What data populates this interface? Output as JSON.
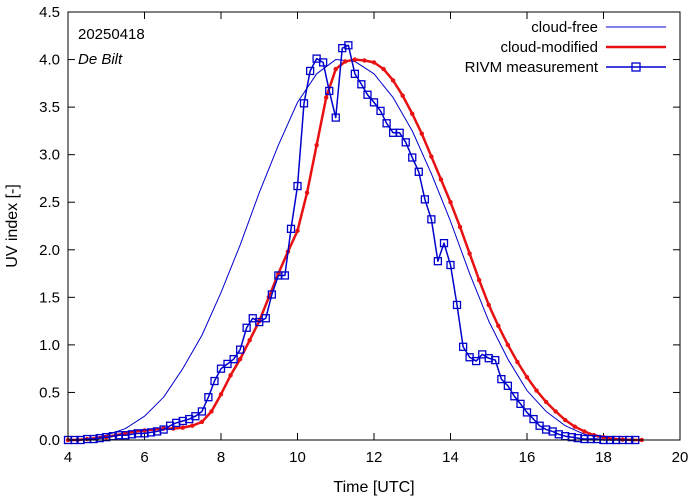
{
  "chart_data": {
    "type": "line",
    "title": "",
    "date_label": "20250418",
    "location_label": "De Bilt",
    "xlabel": "Time  [UTC]",
    "ylabel": "UV index  [-]",
    "xlim": [
      4,
      20
    ],
    "ylim": [
      0,
      4.5
    ],
    "xticks": [
      4,
      6,
      8,
      10,
      12,
      14,
      16,
      18,
      20
    ],
    "yticks": [
      0.0,
      0.5,
      1.0,
      1.5,
      2.0,
      2.5,
      3.0,
      3.5,
      4.0,
      4.5
    ],
    "legend_position": "top-right",
    "series": [
      {
        "name": "cloud-free",
        "color": "#0000cc",
        "marker": "none",
        "x": [
          4.0,
          4.5,
          5.0,
          5.5,
          6.0,
          6.5,
          7.0,
          7.5,
          8.0,
          8.5,
          9.0,
          9.5,
          10.0,
          10.5,
          11.0,
          11.5,
          12.0,
          12.5,
          13.0,
          13.5,
          14.0,
          14.5,
          15.0,
          15.5,
          16.0,
          16.5,
          17.0,
          17.5,
          18.0,
          18.5,
          19.0,
          19.2
        ],
        "y": [
          0.0,
          0.01,
          0.05,
          0.12,
          0.25,
          0.45,
          0.75,
          1.1,
          1.55,
          2.05,
          2.6,
          3.1,
          3.55,
          3.85,
          4.0,
          3.98,
          3.85,
          3.6,
          3.25,
          2.8,
          2.3,
          1.75,
          1.25,
          0.85,
          0.52,
          0.3,
          0.15,
          0.06,
          0.02,
          0.005,
          0.0,
          0.0
        ]
      },
      {
        "name": "cloud-modified",
        "color": "#e81010",
        "marker": "dot",
        "x": [
          4.0,
          4.25,
          4.5,
          4.75,
          5.0,
          5.25,
          5.5,
          5.75,
          6.0,
          6.25,
          6.5,
          6.75,
          7.0,
          7.25,
          7.5,
          7.75,
          8.0,
          8.25,
          8.5,
          8.75,
          9.0,
          9.25,
          9.5,
          9.75,
          10.0,
          10.25,
          10.5,
          10.75,
          11.0,
          11.25,
          11.5,
          11.75,
          12.0,
          12.25,
          12.5,
          12.75,
          13.0,
          13.25,
          13.5,
          13.75,
          14.0,
          14.25,
          14.5,
          14.75,
          15.0,
          15.25,
          15.5,
          15.75,
          16.0,
          16.25,
          16.5,
          16.75,
          17.0,
          17.25,
          17.5,
          17.75,
          18.0,
          18.25,
          18.5,
          18.75,
          19.0
        ],
        "y": [
          0.0,
          0.0,
          0.01,
          0.02,
          0.03,
          0.05,
          0.07,
          0.09,
          0.1,
          0.11,
          0.12,
          0.12,
          0.13,
          0.15,
          0.19,
          0.3,
          0.48,
          0.68,
          0.85,
          1.05,
          1.25,
          1.5,
          1.75,
          1.98,
          2.2,
          2.6,
          3.1,
          3.6,
          3.9,
          3.98,
          4.0,
          3.99,
          3.97,
          3.9,
          3.78,
          3.62,
          3.43,
          3.22,
          2.98,
          2.74,
          2.5,
          2.24,
          1.96,
          1.68,
          1.42,
          1.2,
          1.0,
          0.82,
          0.66,
          0.52,
          0.4,
          0.3,
          0.21,
          0.14,
          0.09,
          0.05,
          0.03,
          0.01,
          0.005,
          0.0,
          0.0
        ]
      },
      {
        "name": "RIVM measurement",
        "color": "#0000cc",
        "marker": "square",
        "x": [
          4.0,
          4.17,
          4.33,
          4.5,
          4.67,
          4.83,
          5.0,
          5.17,
          5.33,
          5.5,
          5.67,
          5.83,
          6.0,
          6.17,
          6.33,
          6.5,
          6.67,
          6.83,
          7.0,
          7.17,
          7.33,
          7.5,
          7.67,
          7.83,
          8.0,
          8.17,
          8.33,
          8.5,
          8.67,
          8.83,
          9.0,
          9.17,
          9.33,
          9.5,
          9.67,
          9.83,
          10.0,
          10.17,
          10.33,
          10.5,
          10.67,
          10.83,
          11.0,
          11.17,
          11.33,
          11.5,
          11.67,
          11.83,
          12.0,
          12.17,
          12.33,
          12.5,
          12.67,
          12.83,
          13.0,
          13.17,
          13.33,
          13.5,
          13.67,
          13.83,
          14.0,
          14.17,
          14.33,
          14.5,
          14.67,
          14.83,
          15.0,
          15.17,
          15.33,
          15.5,
          15.67,
          15.83,
          16.0,
          16.17,
          16.33,
          16.5,
          16.67,
          16.83,
          17.0,
          17.17,
          17.33,
          17.5,
          17.67,
          17.83,
          18.0,
          18.17,
          18.33,
          18.5,
          18.67,
          18.83
        ],
        "y": [
          0.0,
          0.0,
          0.0,
          0.01,
          0.01,
          0.02,
          0.03,
          0.04,
          0.05,
          0.05,
          0.06,
          0.07,
          0.07,
          0.08,
          0.09,
          0.11,
          0.15,
          0.18,
          0.2,
          0.22,
          0.25,
          0.3,
          0.45,
          0.62,
          0.75,
          0.8,
          0.85,
          0.95,
          1.18,
          1.28,
          1.24,
          1.28,
          1.53,
          1.73,
          1.73,
          2.22,
          2.67,
          3.54,
          3.88,
          4.01,
          3.97,
          3.67,
          3.39,
          4.12,
          4.15,
          3.85,
          3.74,
          3.63,
          3.55,
          3.46,
          3.33,
          3.23,
          3.23,
          3.13,
          2.97,
          2.82,
          2.53,
          2.32,
          1.88,
          2.07,
          1.84,
          1.42,
          0.98,
          0.87,
          0.83,
          0.9,
          0.86,
          0.84,
          0.64,
          0.57,
          0.46,
          0.38,
          0.29,
          0.22,
          0.15,
          0.11,
          0.09,
          0.06,
          0.04,
          0.03,
          0.02,
          0.01,
          0.01,
          0.01,
          0.0,
          0.0,
          0.0,
          0.0,
          0.0,
          0.0
        ]
      }
    ]
  }
}
